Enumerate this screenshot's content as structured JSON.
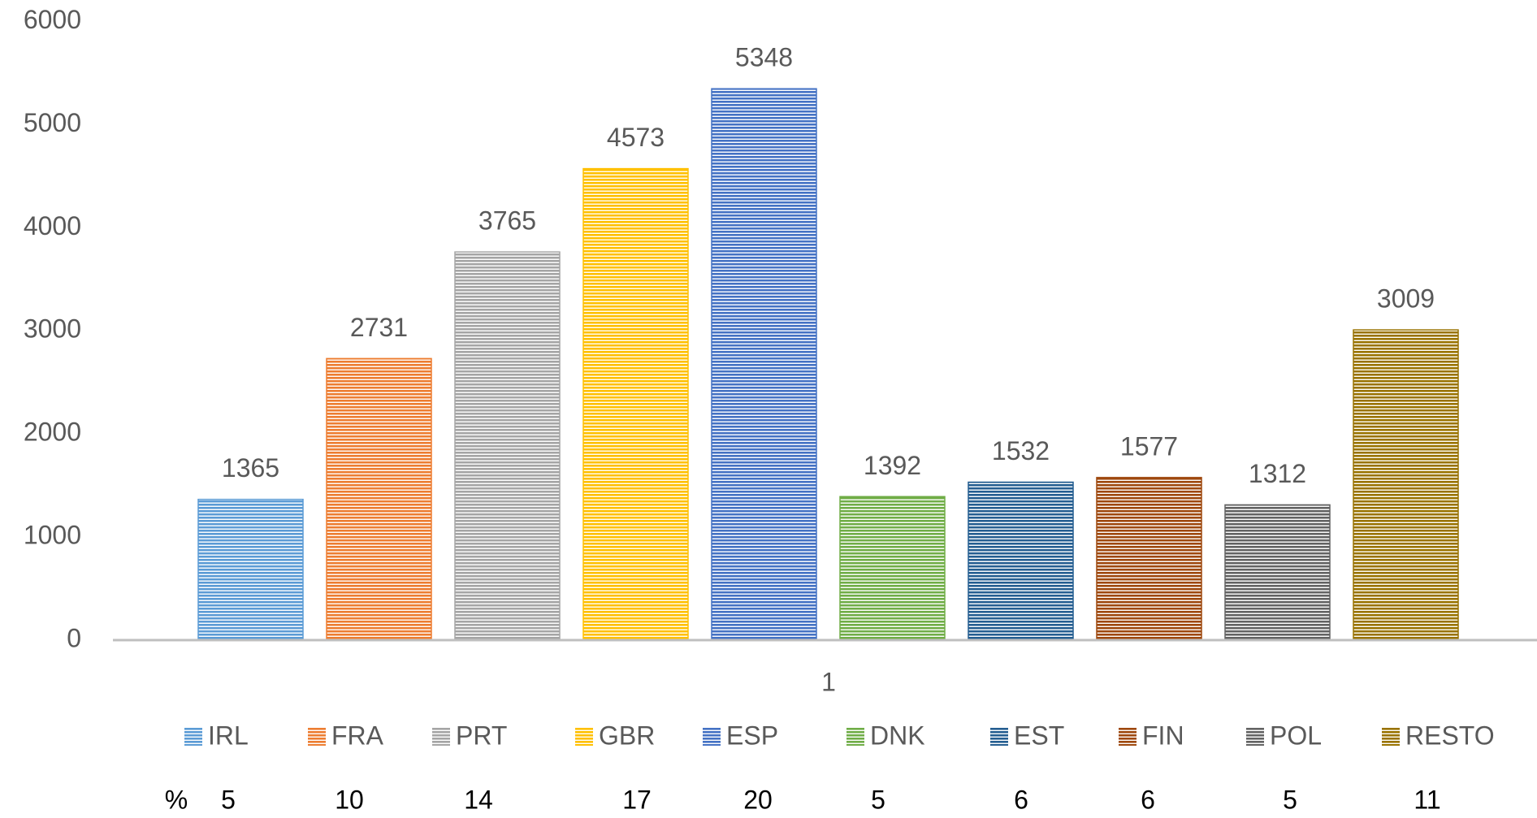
{
  "chart_data": {
    "type": "bar",
    "categories": [
      "1"
    ],
    "series": [
      {
        "name": "IRL",
        "color": "#5b9bd5",
        "values": [
          1365
        ]
      },
      {
        "name": "FRA",
        "color": "#ed7d31",
        "values": [
          2731
        ]
      },
      {
        "name": "PRT",
        "color": "#a5a5a5",
        "values": [
          3765
        ]
      },
      {
        "name": "GBR",
        "color": "#ffc000",
        "values": [
          4573
        ]
      },
      {
        "name": "ESP",
        "color": "#4472c4",
        "values": [
          5348
        ]
      },
      {
        "name": "DNK",
        "color": "#70ad47",
        "values": [
          1392
        ]
      },
      {
        "name": "EST",
        "color": "#255e91",
        "values": [
          1532
        ]
      },
      {
        "name": "FIN",
        "color": "#9e480e",
        "values": [
          1577
        ]
      },
      {
        "name": "POL",
        "color": "#636363",
        "values": [
          1312
        ]
      },
      {
        "name": "RESTO",
        "color": "#997300",
        "values": [
          3009
        ]
      }
    ],
    "ylim": [
      0,
      6000
    ],
    "yticks": [
      0,
      1000,
      2000,
      3000,
      4000,
      5000,
      6000
    ],
    "grid": false,
    "legend": "bottom",
    "data_labels": true,
    "percent_row": {
      "label": "%",
      "values": [
        5,
        10,
        14,
        17,
        20,
        5,
        6,
        6,
        5,
        11
      ]
    }
  }
}
